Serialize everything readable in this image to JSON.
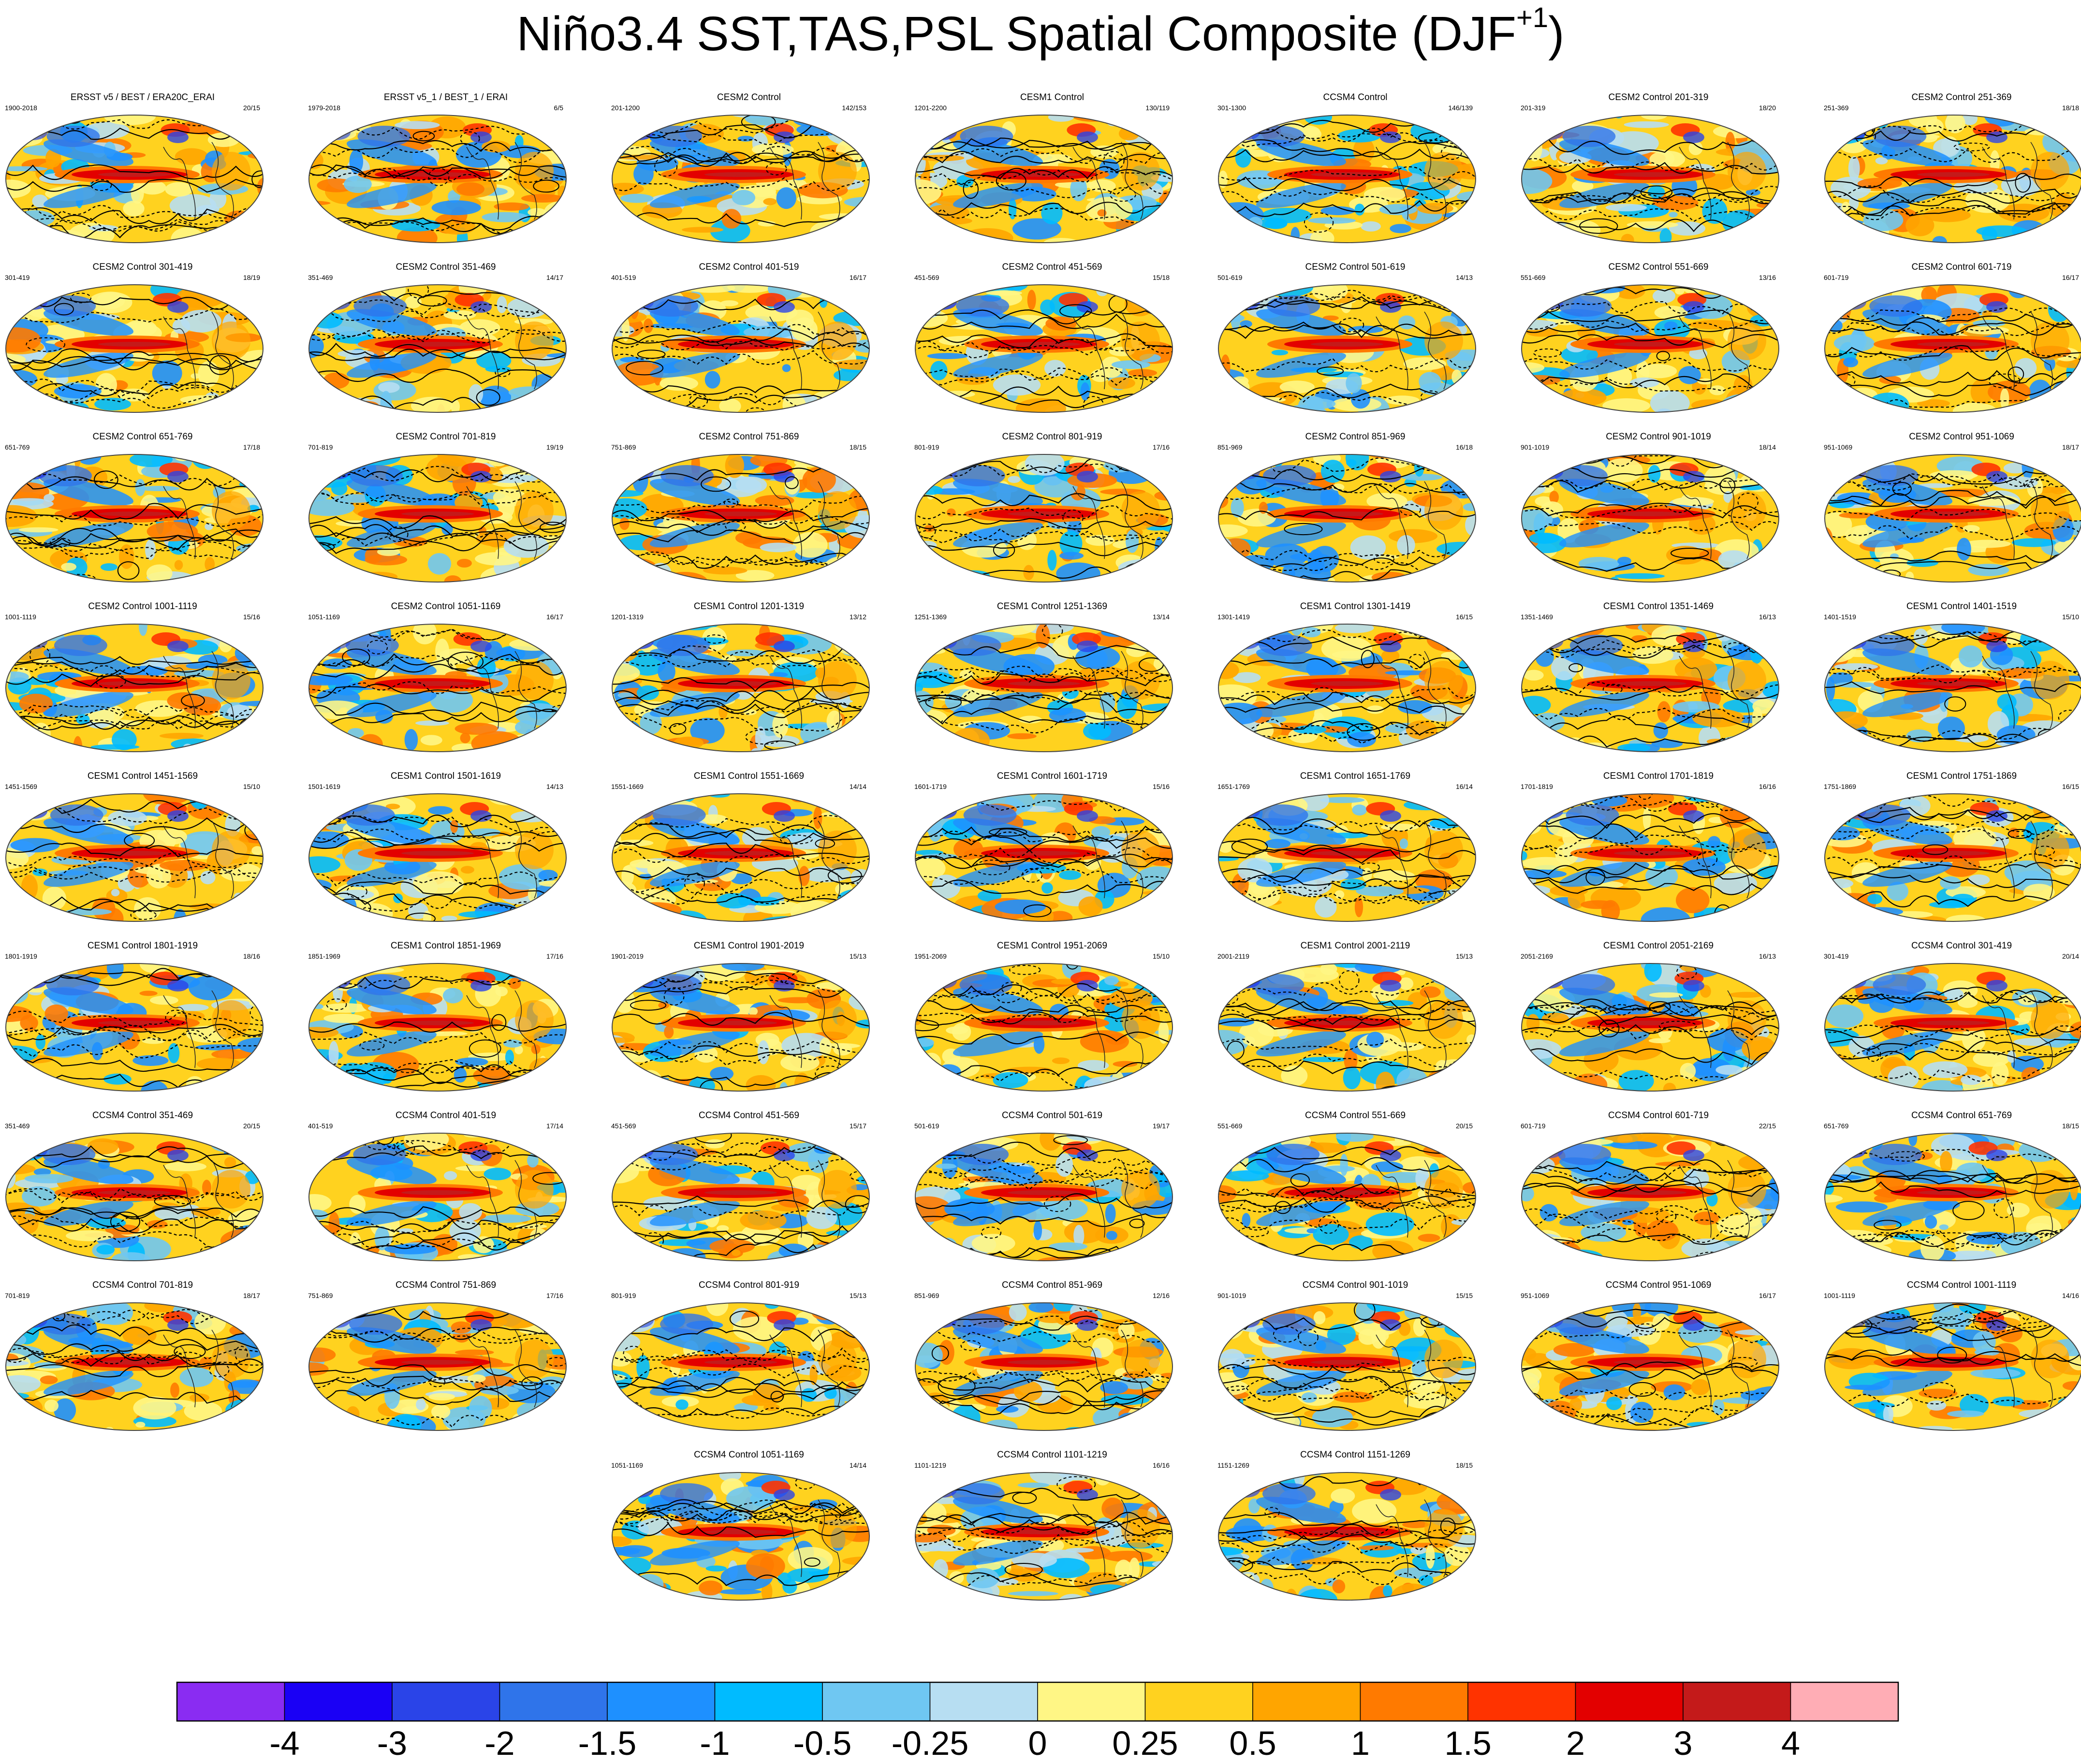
{
  "title": {
    "main": "Niño3.4 SST,TAS,PSL Spatial Composite (DJF",
    "superscript": "+1",
    "close": ")"
  },
  "colorbar": {
    "labels": [
      "-4",
      "-3",
      "-2",
      "-1.5",
      "-1",
      "-0.5",
      "-0.25",
      "0",
      "0.25",
      "0.5",
      "1",
      "1.5",
      "2",
      "3",
      "4"
    ],
    "colors": [
      "#8a2cf2",
      "#1a00f5",
      "#2a44e8",
      "#2f74ea",
      "#1e90ff",
      "#00bbff",
      "#6fc7f2",
      "#b7def2",
      "#fff685",
      "#ffd21f",
      "#ffa500",
      "#ff7a00",
      "#ff3300",
      "#e30000",
      "#c41a1a",
      "#ffadb5"
    ]
  },
  "chart_data": {
    "type": "heatmap",
    "title": "Niño3.4 SST,TAS,PSL Spatial Composite (DJF+1)",
    "colorbar_levels": [
      -4,
      -3,
      -2,
      -1.5,
      -1,
      -0.5,
      -0.25,
      0,
      0.25,
      0.5,
      1,
      1.5,
      2,
      3,
      4
    ],
    "panels": [
      {
        "title": "ERSST v5 / BEST / ERA20C_ERAI",
        "years": "1900-2018",
        "count": "20/15"
      },
      {
        "title": "ERSST v5_1 / BEST_1 / ERAI",
        "years": "1979-2018",
        "count": "6/5"
      },
      {
        "title": "CESM2 Control",
        "years": "201-1200",
        "count": "142/153"
      },
      {
        "title": "CESM1 Control",
        "years": "1201-2200",
        "count": "130/119"
      },
      {
        "title": "CCSM4 Control",
        "years": "301-1300",
        "count": "146/139"
      },
      {
        "title": "CESM2 Control 201-319",
        "years": "201-319",
        "count": "18/20"
      },
      {
        "title": "CESM2 Control 251-369",
        "years": "251-369",
        "count": "18/18"
      },
      {
        "title": "CESM2 Control 301-419",
        "years": "301-419",
        "count": "18/19"
      },
      {
        "title": "CESM2 Control 351-469",
        "years": "351-469",
        "count": "14/17"
      },
      {
        "title": "CESM2 Control 401-519",
        "years": "401-519",
        "count": "16/17"
      },
      {
        "title": "CESM2 Control 451-569",
        "years": "451-569",
        "count": "15/18"
      },
      {
        "title": "CESM2 Control 501-619",
        "years": "501-619",
        "count": "14/13"
      },
      {
        "title": "CESM2 Control 551-669",
        "years": "551-669",
        "count": "13/16"
      },
      {
        "title": "CESM2 Control 601-719",
        "years": "601-719",
        "count": "16/17"
      },
      {
        "title": "CESM2 Control 651-769",
        "years": "651-769",
        "count": "17/18"
      },
      {
        "title": "CESM2 Control 701-819",
        "years": "701-819",
        "count": "19/19"
      },
      {
        "title": "CESM2 Control 751-869",
        "years": "751-869",
        "count": "18/15"
      },
      {
        "title": "CESM2 Control 801-919",
        "years": "801-919",
        "count": "17/16"
      },
      {
        "title": "CESM2 Control 851-969",
        "years": "851-969",
        "count": "16/18"
      },
      {
        "title": "CESM2 Control 901-1019",
        "years": "901-1019",
        "count": "18/14"
      },
      {
        "title": "CESM2 Control 951-1069",
        "years": "951-1069",
        "count": "18/17"
      },
      {
        "title": "CESM2 Control 1001-1119",
        "years": "1001-1119",
        "count": "15/16"
      },
      {
        "title": "CESM2 Control 1051-1169",
        "years": "1051-1169",
        "count": "16/17"
      },
      {
        "title": "CESM1 Control 1201-1319",
        "years": "1201-1319",
        "count": "13/12"
      },
      {
        "title": "CESM1 Control 1251-1369",
        "years": "1251-1369",
        "count": "13/14"
      },
      {
        "title": "CESM1 Control 1301-1419",
        "years": "1301-1419",
        "count": "16/15"
      },
      {
        "title": "CESM1 Control 1351-1469",
        "years": "1351-1469",
        "count": "16/13"
      },
      {
        "title": "CESM1 Control 1401-1519",
        "years": "1401-1519",
        "count": "15/10"
      },
      {
        "title": "CESM1 Control 1451-1569",
        "years": "1451-1569",
        "count": "15/10"
      },
      {
        "title": "CESM1 Control 1501-1619",
        "years": "1501-1619",
        "count": "14/13"
      },
      {
        "title": "CESM1 Control 1551-1669",
        "years": "1551-1669",
        "count": "14/14"
      },
      {
        "title": "CESM1 Control 1601-1719",
        "years": "1601-1719",
        "count": "15/16"
      },
      {
        "title": "CESM1 Control 1651-1769",
        "years": "1651-1769",
        "count": "16/14"
      },
      {
        "title": "CESM1 Control 1701-1819",
        "years": "1701-1819",
        "count": "16/16"
      },
      {
        "title": "CESM1 Control 1751-1869",
        "years": "1751-1869",
        "count": "16/15"
      },
      {
        "title": "CESM1 Control 1801-1919",
        "years": "1801-1919",
        "count": "18/16"
      },
      {
        "title": "CESM1 Control 1851-1969",
        "years": "1851-1969",
        "count": "17/16"
      },
      {
        "title": "CESM1 Control 1901-2019",
        "years": "1901-2019",
        "count": "15/13"
      },
      {
        "title": "CESM1 Control 1951-2069",
        "years": "1951-2069",
        "count": "15/10"
      },
      {
        "title": "CESM1 Control 2001-2119",
        "years": "2001-2119",
        "count": "15/13"
      },
      {
        "title": "CESM1 Control 2051-2169",
        "years": "2051-2169",
        "count": "16/13"
      },
      {
        "title": "CCSM4 Control 301-419",
        "years": "301-419",
        "count": "20/14"
      },
      {
        "title": "CCSM4 Control 351-469",
        "years": "351-469",
        "count": "20/15"
      },
      {
        "title": "CCSM4 Control 401-519",
        "years": "401-519",
        "count": "17/14"
      },
      {
        "title": "CCSM4 Control 451-569",
        "years": "451-569",
        "count": "15/17"
      },
      {
        "title": "CCSM4 Control 501-619",
        "years": "501-619",
        "count": "19/17"
      },
      {
        "title": "CCSM4 Control 551-669",
        "years": "551-669",
        "count": "20/15"
      },
      {
        "title": "CCSM4 Control 601-719",
        "years": "601-719",
        "count": "22/15"
      },
      {
        "title": "CCSM4 Control 651-769",
        "years": "651-769",
        "count": "18/15"
      },
      {
        "title": "CCSM4 Control 701-819",
        "years": "701-819",
        "count": "18/17"
      },
      {
        "title": "CCSM4 Control 751-869",
        "years": "751-869",
        "count": "17/16"
      },
      {
        "title": "CCSM4 Control 801-919",
        "years": "801-919",
        "count": "15/13"
      },
      {
        "title": "CCSM4 Control 851-969",
        "years": "851-969",
        "count": "12/16"
      },
      {
        "title": "CCSM4 Control 901-1019",
        "years": "901-1019",
        "count": "15/15"
      },
      {
        "title": "CCSM4 Control 951-1069",
        "years": "951-1069",
        "count": "16/17"
      },
      {
        "title": "CCSM4 Control 1001-1119",
        "years": "1001-1119",
        "count": "14/16"
      },
      {
        "title": "CCSM4 Control 1051-1169",
        "years": "1051-1169",
        "count": "14/14"
      },
      {
        "title": "CCSM4 Control 1101-1219",
        "years": "1101-1219",
        "count": "16/16"
      },
      {
        "title": "CCSM4 Control 1151-1269",
        "years": "1151-1269",
        "count": "18/15"
      }
    ]
  }
}
